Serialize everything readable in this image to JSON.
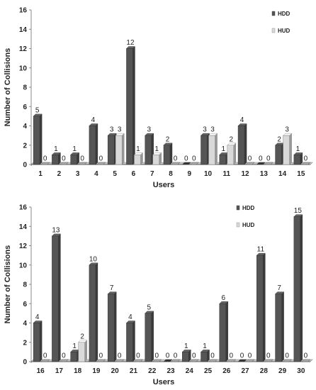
{
  "chart_data": [
    {
      "type": "bar",
      "xlabel": "Users",
      "ylabel": "Number of Collisions",
      "ylim": [
        0,
        16
      ],
      "yticks": [
        0,
        2,
        4,
        6,
        8,
        10,
        12,
        14,
        16
      ],
      "grid": false,
      "legend_position": "top-right",
      "categories": [
        "1",
        "2",
        "3",
        "4",
        "5",
        "6",
        "7",
        "8",
        "9",
        "10",
        "11",
        "12",
        "13",
        "14",
        "15"
      ],
      "series": [
        {
          "name": "HDD",
          "color": "#555555",
          "values": [
            5,
            1,
            1,
            4,
            3,
            12,
            3,
            2,
            0,
            3,
            1,
            4,
            0,
            2,
            1
          ]
        },
        {
          "name": "HUD",
          "color": "#d9d9d9",
          "values": [
            0,
            0,
            0,
            0,
            3,
            1,
            1,
            0,
            0,
            3,
            2,
            0,
            0,
            3,
            0
          ]
        }
      ]
    },
    {
      "type": "bar",
      "xlabel": "Users",
      "ylabel": "Number of Collisions",
      "ylim": [
        0,
        16
      ],
      "yticks": [
        0,
        2,
        4,
        6,
        8,
        10,
        12,
        14,
        16
      ],
      "grid": false,
      "legend_position": "top-right",
      "categories": [
        "16",
        "17",
        "18",
        "19",
        "20",
        "21",
        "22",
        "23",
        "24",
        "25",
        "26",
        "27",
        "28",
        "29",
        "30"
      ],
      "series": [
        {
          "name": "HDD",
          "color": "#555555",
          "values": [
            4,
            13,
            1,
            10,
            7,
            4,
            5,
            0,
            1,
            1,
            6,
            0,
            11,
            7,
            15
          ]
        },
        {
          "name": "HUD",
          "color": "#d9d9d9",
          "values": [
            0,
            0,
            2,
            0,
            0,
            0,
            0,
            0,
            0,
            0,
            0,
            0,
            0,
            0,
            0
          ]
        }
      ]
    }
  ]
}
